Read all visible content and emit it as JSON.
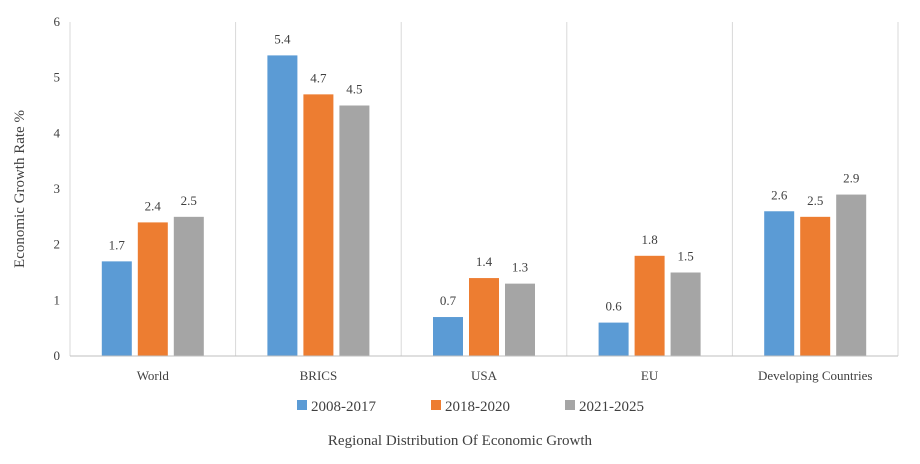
{
  "chart_data": {
    "type": "bar",
    "title": "",
    "xlabel": "Regional Distribution  Of Economic Growth",
    "ylabel": "Economic  Growth Rate  %",
    "ylim": [
      0,
      6
    ],
    "yticks": [
      0,
      1,
      2,
      3,
      4,
      5,
      6
    ],
    "categories": [
      "World",
      "BRICS",
      "USA",
      "EU",
      "Developing Countries"
    ],
    "series": [
      {
        "name": "2008-2017",
        "color": "#5b9bd5",
        "values": [
          1.7,
          5.4,
          0.7,
          0.6,
          2.6
        ]
      },
      {
        "name": "2018-2020",
        "color": "#ed7d31",
        "values": [
          2.4,
          4.7,
          1.4,
          1.8,
          2.5
        ]
      },
      {
        "name": "2021-2025",
        "color": "#a5a5a5",
        "values": [
          2.5,
          4.5,
          1.3,
          1.5,
          2.9
        ]
      }
    ],
    "grid": "vertical-separators",
    "legend": "bottom"
  }
}
